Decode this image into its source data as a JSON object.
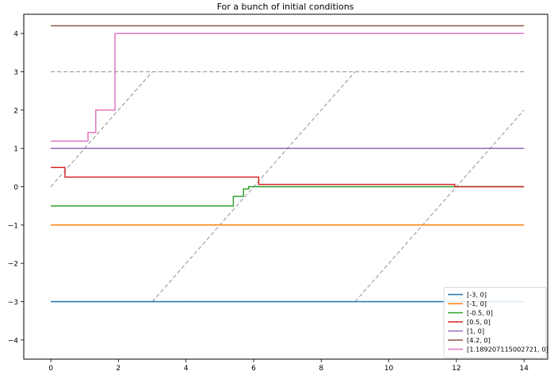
{
  "chart_data": {
    "type": "line",
    "title": "For a bunch of initial conditions",
    "xlabel": "",
    "ylabel": "",
    "xlim": [
      -0.8,
      14.7
    ],
    "ylim": [
      -4.5,
      4.5
    ],
    "xticks": [
      0,
      2,
      4,
      6,
      8,
      10,
      12,
      14
    ],
    "yticks": [
      -4,
      -3,
      -2,
      -1,
      0,
      1,
      2,
      3,
      4
    ],
    "xtick_labels": [
      "0",
      "2",
      "4",
      "6",
      "8",
      "10",
      "12",
      "14"
    ],
    "ytick_labels": [
      "−4",
      "−3",
      "−2",
      "−1",
      "0",
      "1",
      "2",
      "3",
      "4"
    ],
    "grid": false,
    "legend_position": "lower-right",
    "series": [
      {
        "name": "[-3, 0]",
        "color": "#1f77b4",
        "step": true,
        "x": [
          0,
          14
        ],
        "y": [
          -3,
          -3
        ]
      },
      {
        "name": "[-1, 0]",
        "color": "#ff7f0e",
        "step": true,
        "x": [
          0,
          14
        ],
        "y": [
          -1,
          -1
        ]
      },
      {
        "name": "[-0.5, 0]",
        "color": "#2ca02c",
        "step": true,
        "x": [
          0,
          5.4,
          5.7,
          5.85,
          14
        ],
        "y": [
          -0.5,
          -0.25,
          -0.06,
          0,
          0
        ]
      },
      {
        "name": "[0.5, 0]",
        "color": "#d62728",
        "step": true,
        "x": [
          0,
          0.42,
          6.15,
          11.95,
          14
        ],
        "y": [
          0.5,
          0.25,
          0.06,
          0,
          0
        ]
      },
      {
        "name": "[1, 0]",
        "color": "#9467bd",
        "step": true,
        "x": [
          0,
          14
        ],
        "y": [
          1,
          1
        ]
      },
      {
        "name": "[4.2, 0]",
        "color": "#8c564b",
        "step": true,
        "x": [
          0,
          14
        ],
        "y": [
          4.2,
          4.2
        ]
      },
      {
        "name": "[1.189207115002721, 0]",
        "color": "#e377c2",
        "step": true,
        "x": [
          0,
          1.1,
          1.33,
          1.9,
          14
        ],
        "y": [
          1.19,
          1.41,
          2,
          4,
          4
        ]
      }
    ],
    "reference_lines": {
      "color": "#a0a0a0",
      "style": "dashed",
      "lines": [
        {
          "x": [
            0,
            14
          ],
          "y": [
            3,
            3
          ]
        },
        {
          "x": [
            0,
            14
          ],
          "y": [
            -3,
            -3
          ]
        },
        {
          "x": [
            0,
            3
          ],
          "y": [
            0,
            3
          ]
        },
        {
          "x": [
            3,
            9
          ],
          "y": [
            -3,
            3
          ]
        },
        {
          "x": [
            9,
            14
          ],
          "y": [
            -3,
            2
          ]
        }
      ]
    }
  }
}
